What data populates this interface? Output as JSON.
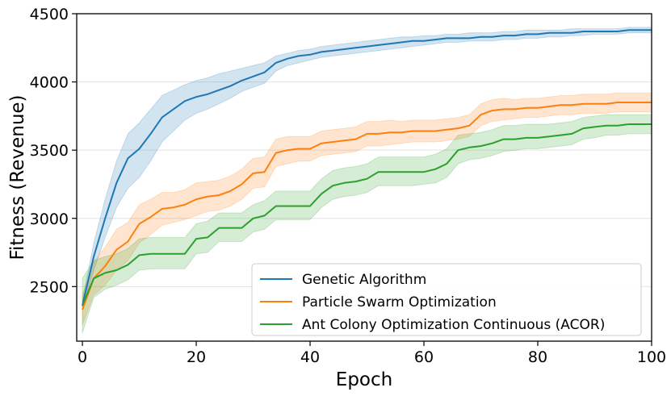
{
  "chart_data": {
    "type": "line",
    "xlabel": "Epoch",
    "ylabel": "Fitness (Revenue)",
    "xlim": [
      -1,
      100
    ],
    "ylim": [
      2100,
      4500
    ],
    "x_ticks": [
      "0",
      "20",
      "40",
      "60",
      "80",
      "100"
    ],
    "y_ticks": [
      "2500",
      "3000",
      "3500",
      "4000",
      "4500"
    ],
    "grid": "horizontal",
    "legend_position": "lower-right",
    "x": [
      0,
      2,
      4,
      6,
      8,
      10,
      12,
      14,
      16,
      18,
      20,
      22,
      24,
      26,
      28,
      30,
      32,
      34,
      36,
      38,
      40,
      42,
      44,
      46,
      48,
      50,
      52,
      54,
      56,
      58,
      60,
      62,
      64,
      66,
      68,
      70,
      72,
      74,
      76,
      78,
      80,
      82,
      84,
      86,
      88,
      90,
      92,
      94,
      96,
      98,
      100
    ],
    "series": [
      {
        "name": "Genetic Algorithm",
        "color": "#1f77b4",
        "values": [
          2360,
          2720,
          3000,
          3260,
          3440,
          3510,
          3620,
          3740,
          3800,
          3860,
          3890,
          3910,
          3940,
          3970,
          4010,
          4040,
          4070,
          4140,
          4170,
          4190,
          4200,
          4220,
          4230,
          4240,
          4250,
          4260,
          4270,
          4280,
          4290,
          4300,
          4300,
          4310,
          4320,
          4320,
          4320,
          4330,
          4330,
          4340,
          4340,
          4350,
          4350,
          4360,
          4360,
          4360,
          4370,
          4370,
          4370,
          4370,
          4380,
          4380,
          4380
        ],
        "lower": [
          2330,
          2620,
          2860,
          3080,
          3220,
          3300,
          3420,
          3560,
          3640,
          3720,
          3770,
          3800,
          3840,
          3880,
          3930,
          3960,
          3990,
          4080,
          4120,
          4140,
          4160,
          4180,
          4190,
          4200,
          4210,
          4220,
          4230,
          4240,
          4250,
          4260,
          4270,
          4280,
          4290,
          4290,
          4300,
          4300,
          4300,
          4310,
          4310,
          4320,
          4320,
          4330,
          4330,
          4340,
          4340,
          4350,
          4350,
          4350,
          4360,
          4360,
          4360
        ],
        "upper": [
          2400,
          2820,
          3140,
          3420,
          3620,
          3700,
          3800,
          3900,
          3940,
          3980,
          4010,
          4030,
          4060,
          4080,
          4100,
          4120,
          4140,
          4190,
          4210,
          4230,
          4240,
          4260,
          4270,
          4280,
          4290,
          4300,
          4310,
          4320,
          4330,
          4330,
          4340,
          4340,
          4350,
          4350,
          4360,
          4360,
          4360,
          4370,
          4370,
          4380,
          4380,
          4380,
          4380,
          4390,
          4390,
          4390,
          4390,
          4390,
          4400,
          4400,
          4400
        ]
      },
      {
        "name": "Particle Swarm Optimization",
        "color": "#ff7f0e",
        "values": [
          2330,
          2560,
          2650,
          2770,
          2830,
          2960,
          3010,
          3070,
          3080,
          3100,
          3140,
          3160,
          3170,
          3200,
          3250,
          3330,
          3340,
          3480,
          3500,
          3510,
          3510,
          3550,
          3560,
          3570,
          3580,
          3620,
          3620,
          3630,
          3630,
          3640,
          3640,
          3640,
          3650,
          3660,
          3680,
          3760,
          3790,
          3800,
          3800,
          3810,
          3810,
          3820,
          3830,
          3830,
          3840,
          3840,
          3840,
          3850,
          3850,
          3850,
          3850
        ],
        "lower": [
          2220,
          2440,
          2510,
          2620,
          2690,
          2820,
          2880,
          2950,
          2970,
          2990,
          3020,
          3050,
          3060,
          3090,
          3140,
          3220,
          3230,
          3380,
          3400,
          3420,
          3420,
          3460,
          3470,
          3480,
          3490,
          3530,
          3530,
          3540,
          3550,
          3560,
          3560,
          3560,
          3570,
          3580,
          3600,
          3680,
          3710,
          3720,
          3730,
          3740,
          3740,
          3750,
          3760,
          3760,
          3770,
          3770,
          3770,
          3780,
          3780,
          3780,
          3780
        ],
        "upper": [
          2440,
          2680,
          2790,
          2920,
          2970,
          3100,
          3140,
          3190,
          3190,
          3210,
          3260,
          3270,
          3280,
          3310,
          3360,
          3440,
          3450,
          3580,
          3600,
          3600,
          3600,
          3640,
          3650,
          3660,
          3670,
          3710,
          3710,
          3720,
          3710,
          3720,
          3720,
          3720,
          3730,
          3740,
          3760,
          3840,
          3870,
          3880,
          3870,
          3880,
          3880,
          3890,
          3900,
          3900,
          3910,
          3910,
          3910,
          3920,
          3920,
          3920,
          3920
        ]
      },
      {
        "name": "Ant Colony Optimization Continuous (ACOR)",
        "color": "#2ca02c",
        "values": [
          2360,
          2560,
          2600,
          2620,
          2660,
          2730,
          2740,
          2740,
          2740,
          2740,
          2850,
          2860,
          2930,
          2930,
          2930,
          3000,
          3020,
          3090,
          3090,
          3090,
          3090,
          3180,
          3240,
          3260,
          3270,
          3290,
          3340,
          3340,
          3340,
          3340,
          3340,
          3360,
          3400,
          3500,
          3520,
          3530,
          3550,
          3580,
          3580,
          3590,
          3590,
          3600,
          3610,
          3620,
          3660,
          3670,
          3680,
          3680,
          3690,
          3690,
          3690
        ],
        "lower": [
          2160,
          2420,
          2480,
          2510,
          2550,
          2620,
          2630,
          2630,
          2630,
          2630,
          2740,
          2750,
          2830,
          2830,
          2830,
          2900,
          2920,
          2990,
          2990,
          2990,
          2990,
          3080,
          3140,
          3160,
          3170,
          3190,
          3240,
          3240,
          3240,
          3240,
          3250,
          3260,
          3300,
          3400,
          3430,
          3440,
          3460,
          3490,
          3500,
          3510,
          3510,
          3520,
          3530,
          3540,
          3580,
          3590,
          3610,
          3610,
          3620,
          3620,
          3620
        ],
        "upper": [
          2560,
          2690,
          2720,
          2740,
          2780,
          2850,
          2860,
          2860,
          2860,
          2860,
          2960,
          2980,
          3040,
          3040,
          3040,
          3100,
          3130,
          3200,
          3200,
          3200,
          3200,
          3290,
          3350,
          3370,
          3380,
          3400,
          3450,
          3450,
          3450,
          3450,
          3450,
          3470,
          3510,
          3610,
          3620,
          3630,
          3650,
          3680,
          3680,
          3690,
          3690,
          3690,
          3700,
          3710,
          3740,
          3750,
          3760,
          3760,
          3760,
          3760,
          3760
        ]
      }
    ]
  }
}
